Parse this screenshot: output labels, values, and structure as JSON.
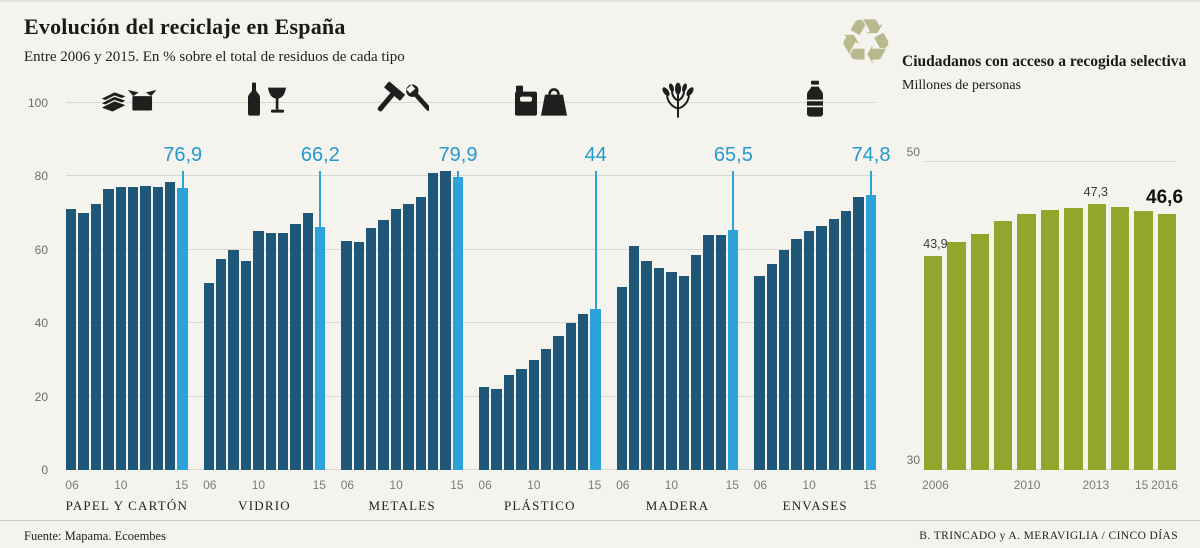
{
  "header": {
    "title": "Evolución del reciclaje en España",
    "subtitle": "Entre 2006 y 2015. En % sobre el total de residuos de cada tipo"
  },
  "right_panel": {
    "title": "Ciudadanos con acceso a recogida selectiva",
    "subtitle": "Millones de personas"
  },
  "footer": {
    "source": "Fuente: Mapama. Ecoembes",
    "credits": "B. TRINCADO y A. MERAVIGLIA / CINCO DÍAS"
  },
  "colors": {
    "background": "#f4f3ee",
    "bar_dark": "#1e5778",
    "bar_highlight": "#2da2d8",
    "bar_green": "#93a62c",
    "accent_blue": "#2599cf",
    "recycle_icon": "#b7ba8c"
  },
  "recycle_glyph": "♻",
  "chart_data": [
    {
      "type": "bar",
      "title": "Evolución del reciclaje en España",
      "ylabel": "% sobre el total de residuos de cada tipo",
      "ylim": [
        0,
        100
      ],
      "yticks": [
        0,
        20,
        40,
        60,
        80,
        100
      ],
      "grid": true,
      "years": [
        "06",
        "07",
        "08",
        "09",
        "10",
        "11",
        "12",
        "13",
        "14",
        "15"
      ],
      "xticks": [
        "06",
        "10",
        "15"
      ],
      "xtick_indices": [
        0,
        4,
        9
      ],
      "highlight_year_index": 9,
      "groups": [
        {
          "label": "PAPEL Y CARTÓN",
          "icon": "paper-cardboard-icon",
          "highlight_label": "76,9",
          "values": [
            71,
            70,
            72.5,
            76.5,
            77,
            77,
            77.5,
            77,
            78.5,
            76.9
          ]
        },
        {
          "label": "VIDRIO",
          "icon": "glass-bottle-icon",
          "highlight_label": "66,2",
          "values": [
            51,
            57.5,
            60,
            57,
            65,
            64.5,
            64.5,
            67,
            70,
            66.2
          ]
        },
        {
          "label": "METALES",
          "icon": "tools-icon",
          "highlight_label": "79,9",
          "values": [
            62.5,
            62,
            66,
            68,
            71,
            72.5,
            74.5,
            81,
            81.5,
            79.9
          ]
        },
        {
          "label": "PLÁSTICO",
          "icon": "jerrycan-bag-icon",
          "highlight_label": "44",
          "values": [
            22.5,
            22,
            26,
            27.5,
            30,
            33,
            36.5,
            40,
            42.5,
            44
          ]
        },
        {
          "label": "MADERA",
          "icon": "plant-icon",
          "highlight_label": "65,5",
          "values": [
            50,
            61,
            57,
            55,
            54,
            53,
            58.5,
            64,
            64,
            65.5
          ]
        },
        {
          "label": "ENVASES",
          "icon": "plastic-bottle-icon",
          "highlight_label": "74,8",
          "values": [
            53,
            56,
            60,
            63,
            65,
            66.5,
            68.5,
            70.5,
            74.5,
            74.8
          ]
        }
      ]
    },
    {
      "type": "bar",
      "title": "Ciudadanos con acceso a recogida selectiva",
      "subtitle": "Millones de personas",
      "ylim": [
        30,
        50
      ],
      "yticks": [
        30,
        50
      ],
      "grid": true,
      "categories": [
        "2006",
        "2007",
        "2008",
        "2009",
        "2010",
        "2011",
        "2012",
        "2013",
        "2014",
        "2015",
        "2016"
      ],
      "values": [
        43.9,
        44.8,
        45.3,
        46.2,
        46.6,
        46.9,
        47.0,
        47.3,
        47.1,
        46.8,
        46.6
      ],
      "xtick_map": [
        {
          "index": 0,
          "label": "2006"
        },
        {
          "index": 4,
          "label": "2010"
        },
        {
          "index": 7,
          "label": "2013"
        },
        {
          "index": 9,
          "label": "15"
        },
        {
          "index": 10,
          "label": "2016"
        }
      ],
      "annotations": [
        {
          "index": 0,
          "label": "43,9",
          "big": false
        },
        {
          "index": 7,
          "label": "47,3",
          "big": false
        },
        {
          "index": 10,
          "label": "46,6",
          "big": true
        }
      ]
    }
  ]
}
